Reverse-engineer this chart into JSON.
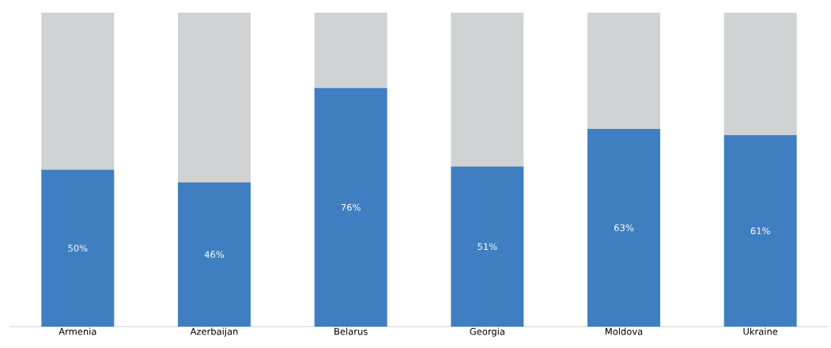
{
  "chart_data": {
    "type": "bar",
    "stacked": true,
    "categories": [
      "Armenia",
      "Azerbaijan",
      "Belarus",
      "Georgia",
      "Moldova",
      "Ukraine"
    ],
    "ylim": [
      0,
      100
    ],
    "series": [
      {
        "color": "#3f7fc1",
        "values": [
          50,
          46,
          76,
          51,
          63,
          61
        ],
        "value_labels": [
          "50%",
          "46%",
          "76%",
          "51%",
          "63%",
          "61%"
        ]
      },
      {
        "color": "#d1d2d4",
        "values": [
          50,
          54,
          24,
          49,
          37,
          39
        ]
      }
    ]
  }
}
